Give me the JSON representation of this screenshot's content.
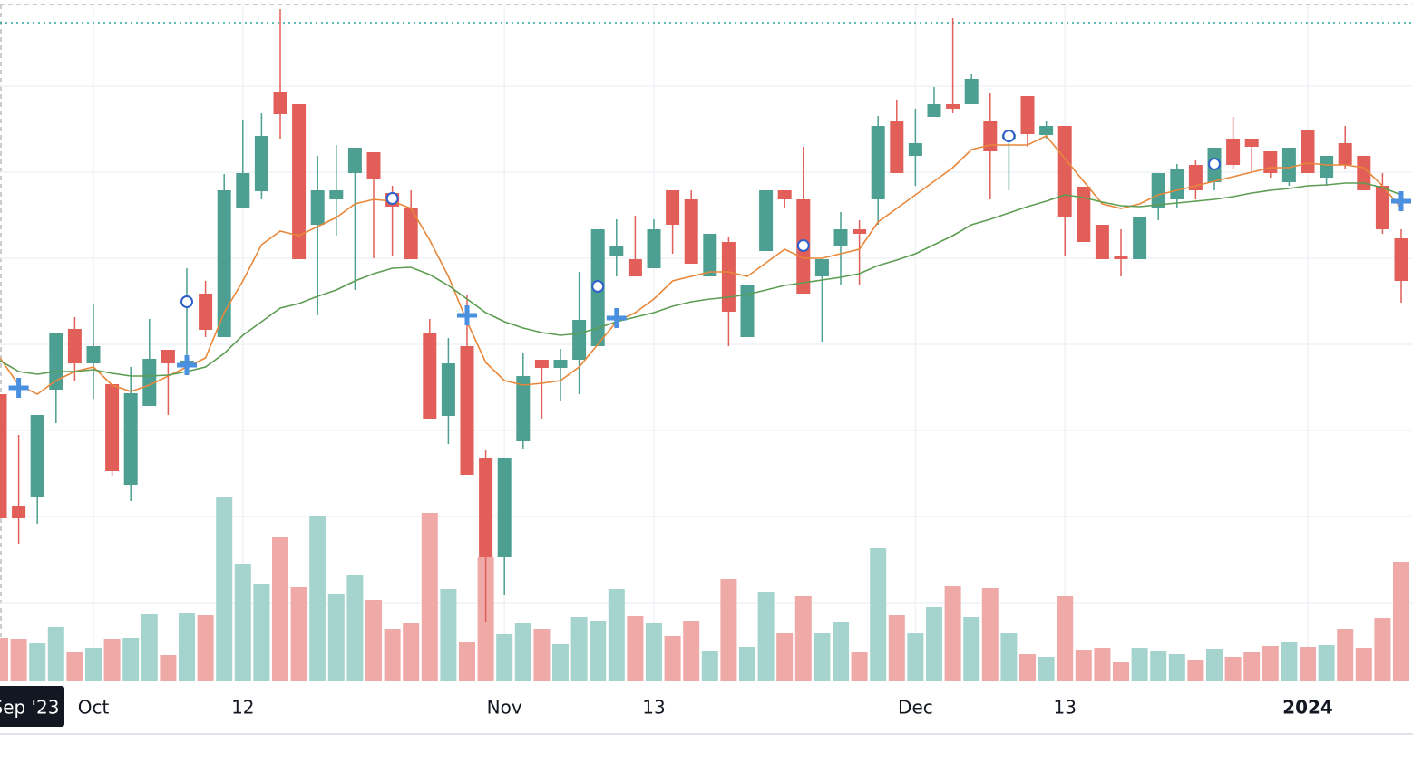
{
  "chart_data": {
    "type": "candlestick",
    "categories": [
      "Sep '23",
      null,
      null,
      null,
      null,
      "Oct",
      null,
      null,
      null,
      null,
      null,
      null,
      null,
      "12",
      null,
      null,
      null,
      null,
      null,
      null,
      null,
      null,
      null,
      null,
      null,
      null,
      null,
      "Nov",
      null,
      null,
      null,
      null,
      null,
      null,
      null,
      "13",
      null,
      null,
      null,
      null,
      null,
      null,
      null,
      null,
      null,
      null,
      null,
      null,
      null,
      "Dec",
      null,
      null,
      null,
      null,
      null,
      null,
      null,
      "13",
      null,
      null,
      null,
      null,
      null,
      null,
      null,
      null,
      null,
      null,
      null,
      null,
      "2024",
      null,
      null,
      null,
      null,
      null
    ],
    "crosshair_index": 0,
    "open": [
      365,
      242,
      252,
      370,
      437,
      399,
      376,
      265,
      352,
      414,
      395,
      476,
      428,
      571,
      589,
      699,
      685,
      552,
      580,
      609,
      632,
      587,
      571,
      433,
      341,
      418,
      295,
      185,
      313,
      403,
      394,
      403,
      418,
      518,
      514,
      504,
      590,
      580,
      495,
      533,
      428,
      523,
      590,
      580,
      495,
      528,
      547,
      580,
      666,
      628,
      671,
      685,
      685,
      666,
      647,
      694,
      651,
      661,
      594,
      552,
      518,
      514,
      571,
      580,
      618,
      599,
      647,
      647,
      633,
      599,
      656,
      604,
      642,
      628,
      595,
      537
    ],
    "high": [
      365,
      320,
      342,
      433,
      450,
      465,
      376,
      395,
      448,
      414,
      504,
      490,
      608,
      668,
      675,
      790,
      685,
      628,
      640,
      637,
      632,
      595,
      590,
      448,
      427,
      475,
      303,
      295,
      410,
      403,
      415,
      500,
      547,
      558,
      562,
      558,
      590,
      590,
      542,
      538,
      485,
      590,
      590,
      638,
      514,
      566,
      557,
      672,
      690,
      680,
      704,
      780,
      718,
      697,
      652,
      694,
      666,
      661,
      594,
      552,
      547,
      561,
      609,
      619,
      623,
      637,
      671,
      647,
      633,
      637,
      656,
      628,
      661,
      628,
      609,
      547
    ],
    "low": [
      228,
      200,
      222,
      333,
      380,
      360,
      275,
      247,
      352,
      342,
      390,
      428,
      428,
      571,
      580,
      647,
      514,
      452,
      540,
      480,
      515,
      518,
      514,
      338,
      310,
      276,
      114,
      143,
      305,
      338,
      357,
      365,
      418,
      495,
      495,
      504,
      520,
      509,
      495,
      418,
      428,
      523,
      571,
      476,
      423,
      485,
      485,
      552,
      609,
      595,
      671,
      675,
      685,
      580,
      590,
      638,
      647,
      518,
      533,
      514,
      495,
      514,
      557,
      571,
      580,
      590,
      614,
      611,
      604,
      595,
      609,
      595,
      614,
      590,
      542,
      466
    ],
    "close": [
      228,
      228,
      342,
      433,
      399,
      418,
      280,
      366,
      404,
      399,
      402,
      436,
      590,
      609,
      650,
      674,
      514,
      590,
      590,
      637,
      602,
      572,
      514,
      338,
      399,
      276,
      185,
      295,
      385,
      394,
      403,
      447,
      547,
      528,
      495,
      547,
      552,
      509,
      542,
      456,
      485,
      590,
      580,
      476,
      514,
      547,
      542,
      661,
      609,
      642,
      685,
      680,
      713,
      633,
      652,
      652,
      661,
      561,
      533,
      514,
      514,
      561,
      609,
      614,
      590,
      637,
      618,
      638,
      609,
      637,
      609,
      628,
      618,
      590,
      547,
      490
    ],
    "volume": [
      48,
      47,
      42,
      60,
      32,
      37,
      47,
      48,
      74,
      29,
      76,
      73,
      204,
      130,
      107,
      159,
      104,
      183,
      97,
      118,
      90,
      58,
      64,
      186,
      102,
      43,
      137,
      52,
      64,
      58,
      41,
      71,
      67,
      102,
      72,
      65,
      50,
      67,
      34,
      113,
      38,
      99,
      54,
      94,
      54,
      66,
      33,
      147,
      73,
      53,
      82,
      105,
      71,
      103,
      53,
      30,
      27,
      94,
      35,
      37,
      22,
      37,
      34,
      30,
      24,
      36,
      27,
      33,
      39,
      44,
      38,
      40,
      58,
      37,
      70,
      132
    ],
    "up_color": "#4c9f91",
    "down_color": "#e15f58",
    "volume_up_color": "#a5d3cd",
    "volume_down_color": "#efaaa8",
    "ma": [
      {
        "color": "#e8873a",
        "values": [
          405,
          375,
          365,
          380,
          390,
          395,
          375,
          368,
          375,
          385,
          395,
          405,
          455,
          490,
          530,
          545,
          540,
          550,
          560,
          575,
          580,
          578,
          570,
          535,
          495,
          445,
          400,
          380,
          375,
          377,
          380,
          395,
          420,
          445,
          455,
          470,
          490,
          495,
          500,
          500,
          495,
          510,
          525,
          515,
          515,
          520,
          525,
          555,
          570,
          585,
          600,
          615,
          635,
          640,
          640,
          640,
          650,
          625,
          600,
          575,
          570,
          575,
          585,
          590,
          595,
          600,
          605,
          610,
          615,
          615,
          620,
          618,
          618,
          615,
          595,
          570
        ]
      },
      {
        "color": "#5c9d52",
        "values": [
          402,
          390,
          387,
          390,
          390,
          392,
          388,
          385,
          385,
          386,
          390,
          395,
          410,
          430,
          445,
          460,
          465,
          473,
          480,
          490,
          498,
          504,
          505,
          497,
          485,
          470,
          455,
          445,
          438,
          433,
          430,
          432,
          438,
          445,
          450,
          455,
          462,
          467,
          470,
          472,
          475,
          480,
          485,
          488,
          491,
          494,
          498,
          507,
          513,
          520,
          530,
          540,
          552,
          558,
          565,
          572,
          578,
          585,
          582,
          577,
          573,
          572,
          574,
          576,
          578,
          580,
          583,
          587,
          590,
          592,
          595,
          596,
          598,
          598,
          593,
          585
        ]
      }
    ],
    "crosses": {
      "color": "#4a8fe0",
      "index": [
        1,
        10,
        25,
        33,
        75
      ],
      "values": [
        372,
        397,
        452,
        449,
        578
      ]
    },
    "circles": {
      "color": "#2f5fcc",
      "index": [
        10,
        21,
        32,
        43,
        54,
        65
      ],
      "values": [
        467,
        581,
        484,
        529,
        650,
        619
      ]
    },
    "price_line": 775,
    "price_line_color": "#26a69a",
    "ylim": [
      50,
      800
    ],
    "volume_lim": [
      0,
      752
    ],
    "hgrid": [
      705,
      610,
      515,
      420,
      325,
      230,
      135
    ],
    "grid": true
  }
}
